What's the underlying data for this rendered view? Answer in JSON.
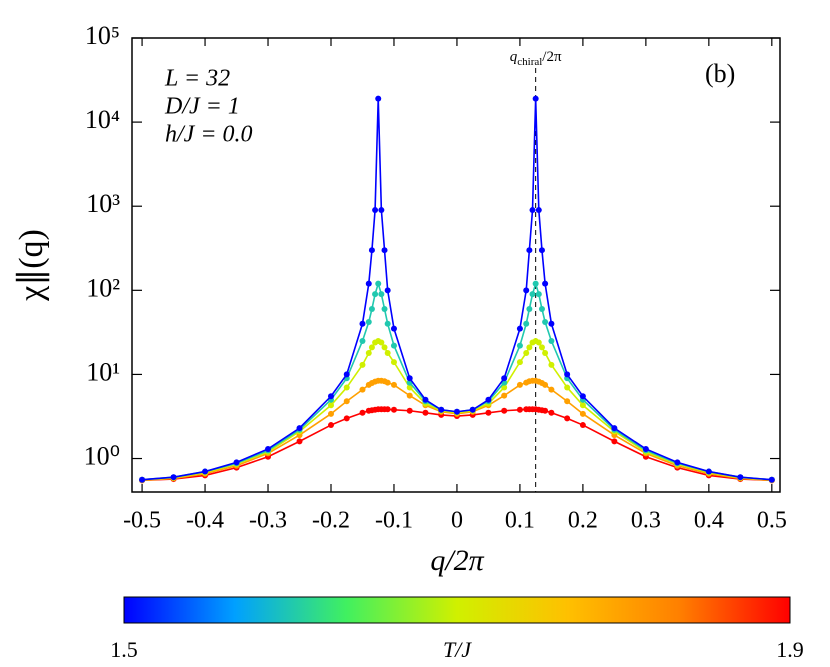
{
  "chart_data": {
    "type": "line",
    "x_label": "q/2π",
    "y_label": "χ∥(q)",
    "log_y": true,
    "xlim": [
      -0.516,
      0.513
    ],
    "ylim": [
      0.4,
      100000
    ],
    "xticks": [
      -0.5,
      -0.4,
      -0.3,
      -0.2,
      -0.1,
      0,
      0.1,
      0.2,
      0.3,
      0.4,
      0.5
    ],
    "yticks": [
      {
        "value": 1,
        "label": "10⁰"
      },
      {
        "value": 10,
        "label": "10¹"
      },
      {
        "value": 100,
        "label": "10²"
      },
      {
        "value": 1000,
        "label": "10³"
      },
      {
        "value": 10000,
        "label": "10⁴"
      },
      {
        "value": 100000,
        "label": "10⁵"
      }
    ],
    "annotations": [
      "L = 32",
      "D/J = 1",
      "h/J = 0.0"
    ],
    "panel_label": "(b)",
    "chiral_line": {
      "x": 0.125,
      "label_parts": [
        "q",
        "chiral",
        "/2π"
      ]
    },
    "colorbar": {
      "label": "T/J",
      "min": 1.5,
      "max": 1.9,
      "ticks": [
        1.5,
        1.9
      ],
      "colors": [
        "#0000ff",
        "#00a0ff",
        "#40f060",
        "#d0f000",
        "#ffc000",
        "#ff8000",
        "#ff0000"
      ]
    },
    "x": [
      -0.5,
      -0.45,
      -0.4,
      -0.35,
      -0.3,
      -0.25,
      -0.2,
      -0.175,
      -0.15,
      -0.14,
      -0.135,
      -0.13,
      -0.125,
      -0.12,
      -0.115,
      -0.11,
      -0.1,
      -0.075,
      -0.05,
      -0.025,
      0,
      0.025,
      0.05,
      0.075,
      0.1,
      0.11,
      0.115,
      0.12,
      0.125,
      0.13,
      0.135,
      0.14,
      0.15,
      0.175,
      0.2,
      0.25,
      0.3,
      0.35,
      0.4,
      0.45,
      0.5
    ],
    "series": [
      {
        "T": 1.9,
        "values": [
          0.55,
          0.57,
          0.63,
          0.78,
          1.05,
          1.6,
          2.5,
          3,
          3.5,
          3.7,
          3.75,
          3.8,
          3.85,
          3.85,
          3.85,
          3.85,
          3.8,
          3.7,
          3.5,
          3.3,
          3.2,
          3.3,
          3.5,
          3.7,
          3.8,
          3.85,
          3.85,
          3.85,
          3.85,
          3.8,
          3.75,
          3.7,
          3.5,
          3,
          2.5,
          1.6,
          1.05,
          0.78,
          0.63,
          0.57,
          0.55
        ]
      },
      {
        "T": 1.8,
        "values": [
          0.55,
          0.58,
          0.66,
          0.82,
          1.15,
          1.9,
          3.4,
          4.8,
          6.6,
          7.5,
          7.9,
          8.2,
          8.4,
          8.4,
          8.3,
          8,
          7.5,
          5.6,
          4.3,
          3.6,
          3.4,
          3.6,
          4.3,
          5.6,
          7.5,
          8,
          8.3,
          8.4,
          8.4,
          8.2,
          7.9,
          7.5,
          6.6,
          4.8,
          3.4,
          1.9,
          1.15,
          0.82,
          0.66,
          0.58,
          0.55
        ]
      },
      {
        "T": 1.7,
        "values": [
          0.56,
          0.59,
          0.68,
          0.86,
          1.2,
          2.1,
          4.3,
          7,
          13,
          18,
          21,
          24,
          25,
          24,
          21,
          18,
          14,
          7,
          4.5,
          3.7,
          3.5,
          3.7,
          4.5,
          7,
          14,
          18,
          21,
          24,
          25,
          24,
          21,
          18,
          13,
          7,
          4.3,
          2.1,
          1.2,
          0.86,
          0.68,
          0.59,
          0.56
        ]
      },
      {
        "T": 1.6,
        "values": [
          0.56,
          0.6,
          0.7,
          0.88,
          1.25,
          2.2,
          5,
          9,
          25,
          42,
          60,
          90,
          120,
          90,
          60,
          40,
          22,
          8,
          4.8,
          3.8,
          3.6,
          3.8,
          4.8,
          8,
          22,
          40,
          60,
          90,
          120,
          90,
          60,
          42,
          25,
          9,
          5,
          2.2,
          1.25,
          0.88,
          0.7,
          0.6,
          0.56
        ]
      },
      {
        "T": 1.5,
        "values": [
          0.56,
          0.6,
          0.7,
          0.9,
          1.3,
          2.3,
          5.5,
          10,
          40,
          120,
          300,
          900,
          19000,
          900,
          300,
          100,
          35,
          9,
          5,
          3.8,
          3.6,
          3.8,
          5,
          9,
          35,
          100,
          300,
          900,
          19000,
          900,
          300,
          120,
          40,
          10,
          5.5,
          2.3,
          1.3,
          0.9,
          0.7,
          0.6,
          0.56
        ]
      }
    ]
  }
}
